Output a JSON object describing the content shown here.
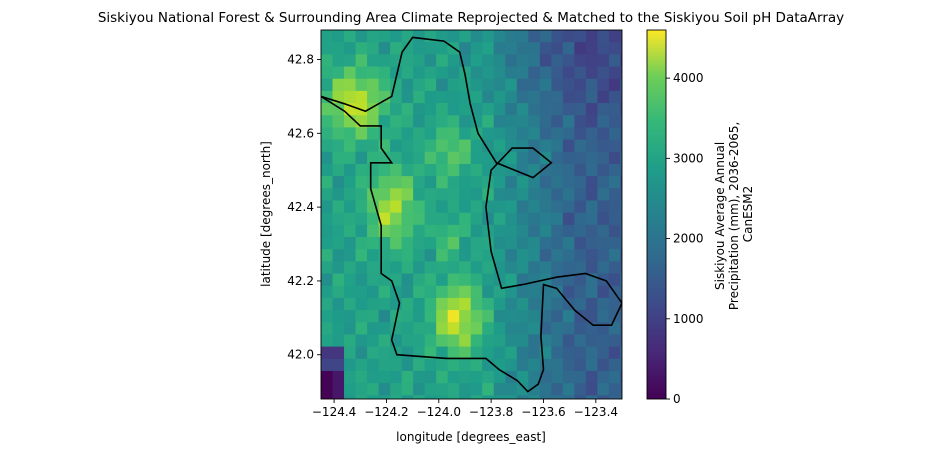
{
  "chart_data": {
    "type": "heatmap",
    "title": "Siskiyou National Forest & Surrounding Area Climate Reprojected & Matched to the Siskiyou Soil pH DataArray",
    "xlabel": "longitude [degrees_east]",
    "ylabel": "latitude [degrees_north]",
    "xlim": [
      -124.45,
      -123.3
    ],
    "ylim": [
      41.88,
      42.88
    ],
    "x_ticks": [
      -124.4,
      -124.2,
      -124.0,
      -123.8,
      -123.6,
      -123.4
    ],
    "x_tick_labels": [
      "−124.4",
      "−124.2",
      "−124.0",
      "−123.8",
      "−123.6",
      "−123.4"
    ],
    "y_ticks": [
      42.0,
      42.2,
      42.4,
      42.6,
      42.8
    ],
    "y_tick_labels": [
      "42.0",
      "42.2",
      "42.4",
      "42.6",
      "42.8"
    ],
    "grid": false,
    "colormap": "viridis",
    "colorbar": {
      "label_lines": [
        "Siskiyou Average Annual",
        "Precipitation (mm), 2036-2065,",
        "CanESM2"
      ],
      "vmin": 0,
      "vmax": 4600,
      "ticks": [
        0,
        1000,
        2000,
        3000,
        4000
      ],
      "tick_labels": [
        "0",
        "1000",
        "2000",
        "3000",
        "4000"
      ],
      "placement": "right"
    },
    "boundary_color": "#000000",
    "boundary_lonlat": [
      [
        -124.45,
        42.7
      ],
      [
        -124.36,
        42.66
      ],
      [
        -124.3,
        42.62
      ],
      [
        -124.22,
        42.62
      ],
      [
        -124.22,
        42.56
      ],
      [
        -124.18,
        42.52
      ],
      [
        -124.26,
        42.52
      ],
      [
        -124.26,
        42.45
      ],
      [
        -124.22,
        42.35
      ],
      [
        -124.22,
        42.22
      ],
      [
        -124.18,
        42.2
      ],
      [
        -124.15,
        42.14
      ],
      [
        -124.18,
        42.04
      ],
      [
        -124.16,
        42.0
      ],
      [
        -123.97,
        41.99
      ],
      [
        -123.82,
        41.99
      ],
      [
        -123.77,
        41.96
      ],
      [
        -123.7,
        41.93
      ],
      [
        -123.66,
        41.9
      ],
      [
        -123.62,
        41.92
      ],
      [
        -123.6,
        41.96
      ],
      [
        -123.61,
        42.05
      ],
      [
        -123.6,
        42.19
      ],
      [
        -123.55,
        42.18
      ],
      [
        -123.48,
        42.12
      ],
      [
        -123.41,
        42.08
      ],
      [
        -123.34,
        42.08
      ],
      [
        -123.3,
        42.14
      ],
      [
        -123.36,
        42.2
      ],
      [
        -123.44,
        42.22
      ],
      [
        -123.55,
        42.21
      ],
      [
        -123.68,
        42.19
      ],
      [
        -123.76,
        42.18
      ],
      [
        -123.8,
        42.28
      ],
      [
        -123.82,
        42.4
      ],
      [
        -123.8,
        42.5
      ],
      [
        -123.72,
        42.56
      ],
      [
        -123.64,
        42.56
      ],
      [
        -123.57,
        42.52
      ],
      [
        -123.64,
        42.48
      ],
      [
        -123.78,
        42.52
      ],
      [
        -123.85,
        42.6
      ],
      [
        -123.88,
        42.68
      ],
      [
        -123.9,
        42.76
      ],
      [
        -123.92,
        42.82
      ],
      [
        -123.98,
        42.85
      ],
      [
        -124.1,
        42.86
      ],
      [
        -124.14,
        42.82
      ],
      [
        -124.16,
        42.76
      ],
      [
        -124.18,
        42.7
      ],
      [
        -124.28,
        42.66
      ],
      [
        -124.36,
        42.68
      ],
      [
        -124.45,
        42.7
      ]
    ]
  }
}
